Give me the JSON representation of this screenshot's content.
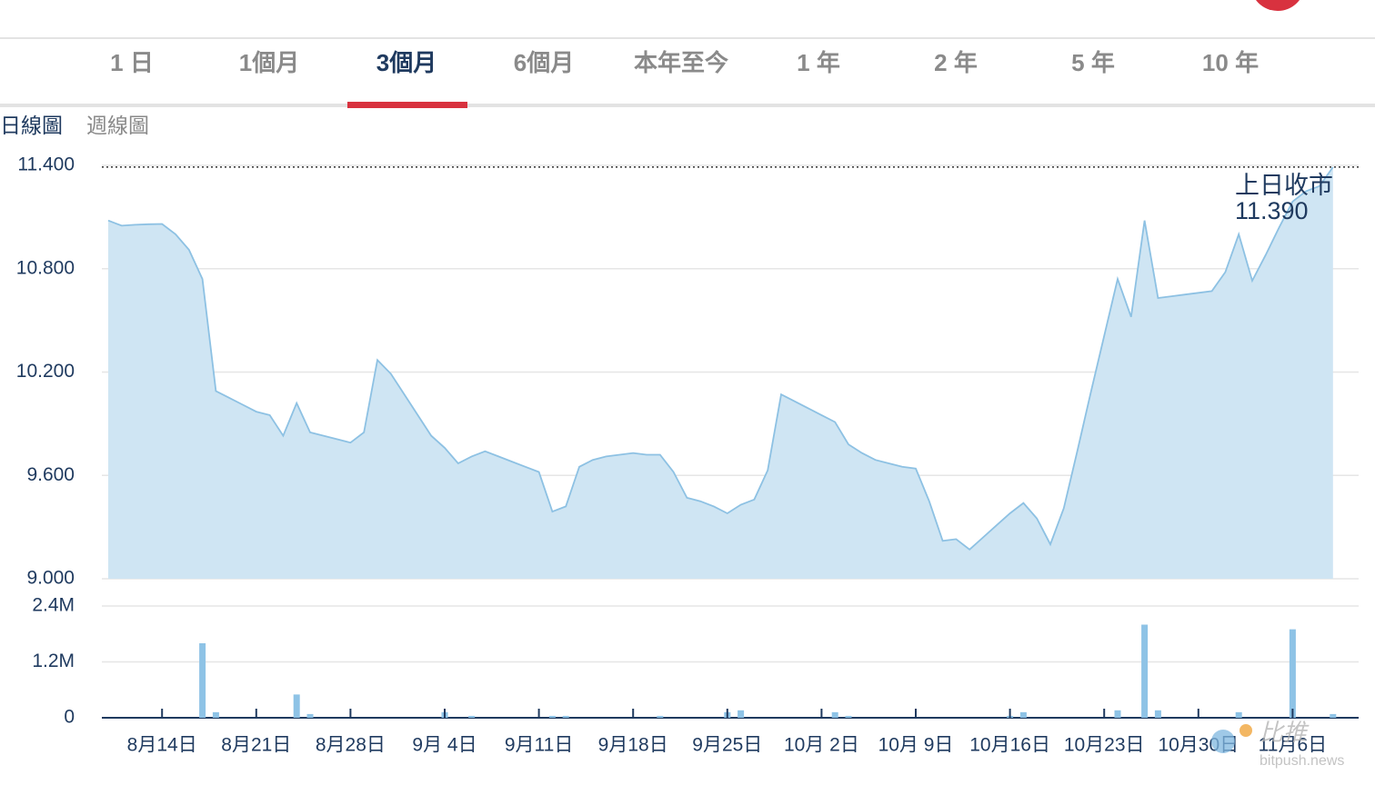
{
  "tabs": [
    {
      "label": "1 日"
    },
    {
      "label": "1個月"
    },
    {
      "label": "3個月",
      "active": true
    },
    {
      "label": "6個月"
    },
    {
      "label": "本年至今"
    },
    {
      "label": "1 年"
    },
    {
      "label": "2 年"
    },
    {
      "label": "5 年"
    },
    {
      "label": "10 年"
    }
  ],
  "chart_tabs": [
    {
      "label": "日線圖",
      "active": true
    },
    {
      "label": "週線圖"
    }
  ],
  "watermark": {
    "name": "比推",
    "site": "bitpush.news"
  },
  "chart_data": [
    {
      "type": "area",
      "color": "#8dc1e3",
      "fill": "#cfe5f3",
      "values": [
        11.08,
        11.05,
        11.055,
        11.058,
        11.06,
        11.0,
        10.91,
        10.74,
        10.09,
        10.05,
        10.01,
        9.97,
        9.95,
        9.83,
        10.02,
        9.85,
        9.83,
        9.81,
        9.79,
        9.85,
        10.27,
        10.19,
        10.07,
        9.95,
        9.83,
        9.76,
        9.67,
        9.71,
        9.74,
        9.71,
        9.68,
        9.65,
        9.62,
        9.39,
        9.42,
        9.65,
        9.69,
        9.71,
        9.72,
        9.73,
        9.72,
        9.72,
        9.62,
        9.47,
        9.45,
        9.42,
        9.38,
        9.43,
        9.46,
        9.63,
        10.07,
        10.03,
        9.99,
        9.95,
        9.91,
        9.78,
        9.73,
        9.69,
        9.67,
        9.65,
        9.64,
        9.45,
        9.22,
        9.23,
        9.17,
        9.24,
        9.31,
        9.38,
        9.44,
        9.35,
        9.2,
        9.41,
        9.74,
        10.08,
        10.41,
        10.74,
        10.52,
        11.08,
        10.63,
        10.64,
        10.65,
        10.66,
        10.67,
        10.78,
        11.0,
        10.73,
        10.88,
        11.04,
        11.19,
        11.25,
        11.28,
        11.39
      ],
      "ylim": [
        9,
        11.4
      ],
      "yticks": [
        {
          "value": 9,
          "label": "9.000"
        },
        {
          "value": 9.6,
          "label": "9.600"
        },
        {
          "value": 10.2,
          "label": "10.200"
        },
        {
          "value": 10.8,
          "label": "10.800"
        },
        {
          "value": 11.4,
          "label": "11.400"
        }
      ],
      "grid": true,
      "reference_line": {
        "label": "上日收市",
        "value": 11.39,
        "value_label": "11.390"
      }
    },
    {
      "type": "bar",
      "color": "#8ec3e6",
      "categories": [
        null,
        null,
        null,
        null,
        "8月14日",
        null,
        null,
        null,
        null,
        null,
        null,
        "8月21日",
        null,
        null,
        null,
        null,
        null,
        null,
        "8月28日",
        null,
        null,
        null,
        null,
        null,
        null,
        "9月 4日",
        null,
        null,
        null,
        null,
        null,
        null,
        "9月11日",
        null,
        null,
        null,
        null,
        null,
        null,
        "9月18日",
        null,
        null,
        null,
        null,
        null,
        null,
        "9月25日",
        null,
        null,
        null,
        null,
        null,
        null,
        "10月 2日",
        null,
        null,
        null,
        null,
        null,
        null,
        "10月 9日",
        null,
        null,
        null,
        null,
        null,
        null,
        "10月16日",
        null,
        null,
        null,
        null,
        null,
        null,
        "10月23日",
        null,
        null,
        null,
        null,
        null,
        null,
        "10月30日",
        null,
        null,
        null,
        null,
        null,
        null,
        "11月6日",
        null,
        null,
        null
      ],
      "values": [
        null,
        null,
        null,
        null,
        null,
        null,
        null,
        1600000,
        120000,
        null,
        null,
        null,
        null,
        null,
        500000,
        80000,
        null,
        null,
        null,
        null,
        null,
        null,
        null,
        null,
        null,
        120000,
        null,
        40000,
        null,
        null,
        null,
        null,
        null,
        40000,
        40000,
        null,
        null,
        null,
        null,
        null,
        null,
        40000,
        null,
        null,
        null,
        null,
        120000,
        160000,
        null,
        null,
        null,
        null,
        null,
        null,
        120000,
        40000,
        null,
        null,
        null,
        null,
        null,
        null,
        null,
        null,
        null,
        null,
        null,
        40000,
        120000,
        null,
        null,
        null,
        null,
        null,
        null,
        160000,
        null,
        2000000,
        160000,
        null,
        null,
        null,
        null,
        null,
        120000,
        null,
        null,
        null,
        1900000,
        null,
        null,
        80000
      ],
      "ylim": [
        0,
        2400000
      ],
      "yticks": [
        0,
        {
          "value": 1200000,
          "label": "1.2M"
        },
        {
          "value": 2400000,
          "label": "2.4M"
        }
      ],
      "grid": true
    }
  ]
}
